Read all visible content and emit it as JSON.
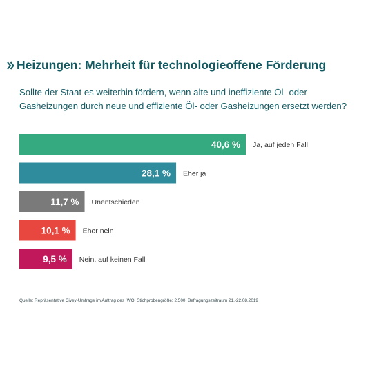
{
  "heading": {
    "marker_icon": "double-chevron-right-icon",
    "text": "Heizungen: Mehrheit für technologieoffene Förderung"
  },
  "question": "Sollte der Staat es weiterhin fördern, wenn alte und ineffiziente Öl- oder Gasheizungen durch neue und effiziente Öl- oder Gasheizungen ersetzt werden?",
  "source": "Quelle: Repräsentative Civey-Umfrage im Auftrag des IWO; Stichprobengröße: 2.500; Befragungszeitraum 21.-22.08.2019",
  "chart_data": {
    "type": "bar",
    "orientation": "horizontal",
    "unit": "%",
    "categories": [
      "Ja, auf jeden Fall",
      "Eher ja",
      "Unentschieden",
      "Eher nein",
      "Nein, auf keinen Fall"
    ],
    "values": [
      40.6,
      28.1,
      11.7,
      10.1,
      9.5
    ],
    "value_labels": [
      "40,6 %",
      "28,1 %",
      "11,7 %",
      "10,1 %",
      "9,5 %"
    ],
    "colors": [
      "#35a97f",
      "#2f8c9c",
      "#7a7a7a",
      "#e8473f",
      "#c0185a"
    ],
    "grid": false,
    "legend": "none"
  },
  "colors": {
    "heading": "#135a63",
    "value_label": "#ffffff",
    "category_label": "#333333"
  }
}
